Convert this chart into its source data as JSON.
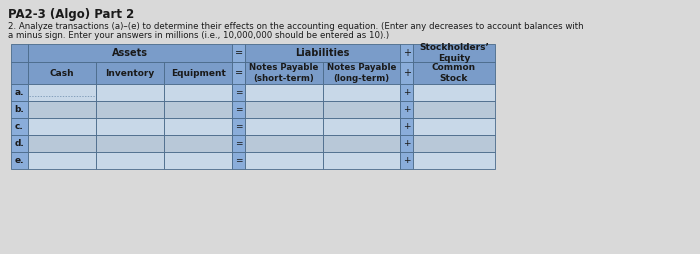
{
  "title": "PA2-3 (Algo) Part 2",
  "instruction_line1": "2. Analyze transactions (a)–(e) to determine their effects on the accounting equation. (Enter any decreases to account balances with",
  "instruction_line2": "a minus sign. Enter your answers in millions (i.e., 10,000,000 should be entered as 10).)",
  "row_labels": [
    "a.",
    "b.",
    "c.",
    "d.",
    "e."
  ],
  "page_bg": "#d9d9d9",
  "header_bg": "#7a9cc9",
  "header_bg2": "#8aadda",
  "input_bg_light": "#c8d8e8",
  "input_bg_dark": "#b8c8d8",
  "label_bg": "#8aadda",
  "eq_plus_bg": "#8aadda",
  "border_color": "#4a6a8a",
  "text_color": "#1a1a1a",
  "header_text": "#1a1a1a"
}
